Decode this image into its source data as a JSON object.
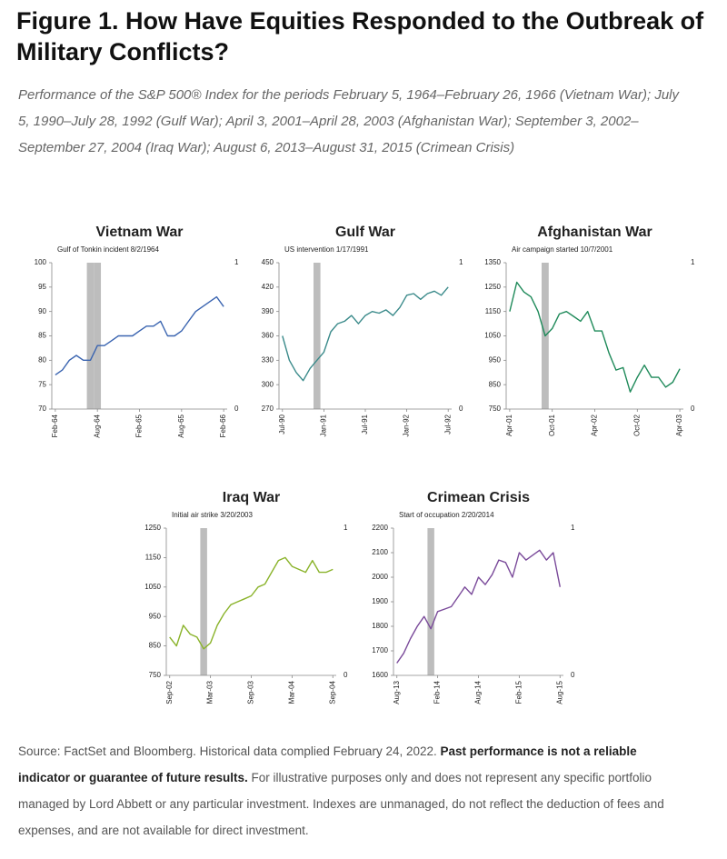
{
  "figure_title": "Figure 1. How Have Equities Responded to the Outbreak of Military Conflicts?",
  "subtitle": "Performance of the S&P 500® Index for the periods February 5, 1964–February 26, 1966 (Vietnam War); July 5, 1990–July 28, 1992 (Gulf War); April 3, 2001–April 28, 2003 (Afghanistan War); September 3, 2002–September 27, 2004 (Iraq War); August 6, 2013–August 31, 2015 (Crimean Crisis)",
  "footnote": [
    "Source: FactSet and Bloomberg. Historical data complied February 24, 2022. ",
    "Past performance is not a reliable indicator or guarantee of future results.",
    " For illustrative purposes only and does not represent any specific portfolio managed by Lord Abbett or any particular investment. Indexes are unmanaged, do not reflect the deduction of fees and expenses, and are not available for direct investment."
  ],
  "chart_data": [
    {
      "type": "line",
      "title": "Vietnam War",
      "annotation": "Gulf of Tonkin incident 8/2/1964",
      "categories": [
        "Feb-64",
        null,
        null,
        null,
        null,
        null,
        "Aug-64",
        null,
        null,
        null,
        null,
        null,
        "Feb-65",
        null,
        null,
        null,
        null,
        null,
        "Aug-65",
        null,
        null,
        null,
        null,
        null,
        "Feb-66"
      ],
      "series": [
        {
          "type": "line",
          "color": "#3a64b0",
          "values": [
            77,
            78,
            80,
            81,
            80,
            80,
            83,
            83,
            84,
            85,
            85,
            85,
            86,
            87,
            87,
            88,
            85,
            85,
            86,
            88,
            90,
            91,
            92,
            93,
            91
          ]
        },
        {
          "type": "bar",
          "axis": "y2",
          "color": "#bdbdbd",
          "values": [
            0,
            0,
            0,
            0,
            0,
            1,
            1,
            0,
            0,
            0,
            0,
            0,
            0,
            0,
            0,
            0,
            0,
            0,
            0,
            0,
            0,
            0,
            0,
            0,
            0
          ]
        }
      ],
      "ylim": [
        70,
        100
      ],
      "yticks": [
        70,
        75,
        80,
        85,
        90,
        95,
        100
      ],
      "y2lim": [
        0,
        1
      ],
      "y2ticks": [
        0,
        1
      ]
    },
    {
      "type": "line",
      "title": "Gulf War",
      "annotation": "US intervention 1/17/1991",
      "categories": [
        "Jul-90",
        null,
        null,
        null,
        null,
        null,
        "Jan-91",
        null,
        null,
        null,
        null,
        null,
        "Jul-91",
        null,
        null,
        null,
        null,
        null,
        "Jan-92",
        null,
        null,
        null,
        null,
        null,
        "Jul-92"
      ],
      "series": [
        {
          "type": "line",
          "color": "#3a8a8a",
          "values": [
            360,
            330,
            315,
            305,
            320,
            330,
            340,
            365,
            375,
            378,
            385,
            375,
            385,
            390,
            388,
            392,
            385,
            395,
            410,
            412,
            405,
            412,
            415,
            410,
            420
          ]
        },
        {
          "type": "bar",
          "axis": "y2",
          "color": "#bdbdbd",
          "values": [
            0,
            0,
            0,
            0,
            0,
            1,
            0,
            0,
            0,
            0,
            0,
            0,
            0,
            0,
            0,
            0,
            0,
            0,
            0,
            0,
            0,
            0,
            0,
            0,
            0
          ]
        }
      ],
      "ylim": [
        270,
        450
      ],
      "yticks": [
        270,
        300,
        330,
        360,
        390,
        420,
        450
      ],
      "y2lim": [
        0,
        1
      ],
      "y2ticks": [
        0,
        1
      ]
    },
    {
      "type": "line",
      "title": "Afghanistan War",
      "annotation": "Air campaign started 10/7/2001",
      "categories": [
        "Apr-01",
        null,
        null,
        null,
        null,
        null,
        "Oct-01",
        null,
        null,
        null,
        null,
        null,
        "Apr-02",
        null,
        null,
        null,
        null,
        null,
        "Oct-02",
        null,
        null,
        null,
        null,
        null,
        "Apr-03"
      ],
      "series": [
        {
          "type": "line",
          "color": "#1f8a5a",
          "values": [
            1150,
            1270,
            1230,
            1210,
            1150,
            1050,
            1080,
            1140,
            1150,
            1130,
            1110,
            1150,
            1070,
            1070,
            980,
            910,
            920,
            820,
            880,
            930,
            880,
            880,
            840,
            860,
            915
          ]
        },
        {
          "type": "bar",
          "axis": "y2",
          "color": "#bdbdbd",
          "values": [
            0,
            0,
            0,
            0,
            0,
            1,
            0,
            0,
            0,
            0,
            0,
            0,
            0,
            0,
            0,
            0,
            0,
            0,
            0,
            0,
            0,
            0,
            0,
            0,
            0
          ]
        }
      ],
      "ylim": [
        750,
        1350
      ],
      "yticks": [
        750,
        850,
        950,
        1050,
        1150,
        1250,
        1350
      ],
      "y2lim": [
        0,
        1
      ],
      "y2ticks": [
        0,
        1
      ]
    },
    {
      "type": "line",
      "title": "Iraq War",
      "annotation": "Initial air strike 3/20/2003",
      "categories": [
        "Sep-02",
        null,
        null,
        null,
        null,
        null,
        "Mar-03",
        null,
        null,
        null,
        null,
        null,
        "Sep-03",
        null,
        null,
        null,
        null,
        null,
        "Mar-04",
        null,
        null,
        null,
        null,
        null,
        "Sep-04"
      ],
      "series": [
        {
          "type": "line",
          "color": "#8ab32a",
          "values": [
            880,
            850,
            920,
            890,
            880,
            840,
            860,
            920,
            960,
            990,
            1000,
            1010,
            1020,
            1050,
            1060,
            1100,
            1140,
            1150,
            1120,
            1110,
            1100,
            1140,
            1100,
            1100,
            1110
          ]
        },
        {
          "type": "bar",
          "axis": "y2",
          "color": "#bdbdbd",
          "values": [
            0,
            0,
            0,
            0,
            0,
            1,
            0,
            0,
            0,
            0,
            0,
            0,
            0,
            0,
            0,
            0,
            0,
            0,
            0,
            0,
            0,
            0,
            0,
            0,
            0
          ]
        }
      ],
      "ylim": [
        750,
        1250
      ],
      "yticks": [
        750,
        850,
        950,
        1050,
        1150,
        1250
      ],
      "y2lim": [
        0,
        1
      ],
      "y2ticks": [
        0,
        1
      ]
    },
    {
      "type": "line",
      "title": "Crimean Crisis",
      "annotation": "Start of occupation 2/20/2014",
      "categories": [
        "Aug-13",
        null,
        null,
        null,
        null,
        null,
        "Feb-14",
        null,
        null,
        null,
        null,
        null,
        "Aug-14",
        null,
        null,
        null,
        null,
        null,
        "Feb-15",
        null,
        null,
        null,
        null,
        null,
        "Aug-15"
      ],
      "series": [
        {
          "type": "line",
          "color": "#7a4a9a",
          "values": [
            1650,
            1690,
            1750,
            1800,
            1840,
            1790,
            1860,
            1870,
            1880,
            1920,
            1960,
            1930,
            2000,
            1970,
            2010,
            2070,
            2060,
            2000,
            2100,
            2070,
            2090,
            2110,
            2070,
            2100,
            1960
          ]
        },
        {
          "type": "bar",
          "axis": "y2",
          "color": "#bdbdbd",
          "values": [
            0,
            0,
            0,
            0,
            0,
            1,
            0,
            0,
            0,
            0,
            0,
            0,
            0,
            0,
            0,
            0,
            0,
            0,
            0,
            0,
            0,
            0,
            0,
            0,
            0
          ]
        }
      ],
      "ylim": [
        1600,
        2200
      ],
      "yticks": [
        1600,
        1700,
        1800,
        1900,
        2000,
        2100,
        2200
      ],
      "y2lim": [
        0,
        1
      ],
      "y2ticks": [
        0,
        1
      ]
    }
  ]
}
